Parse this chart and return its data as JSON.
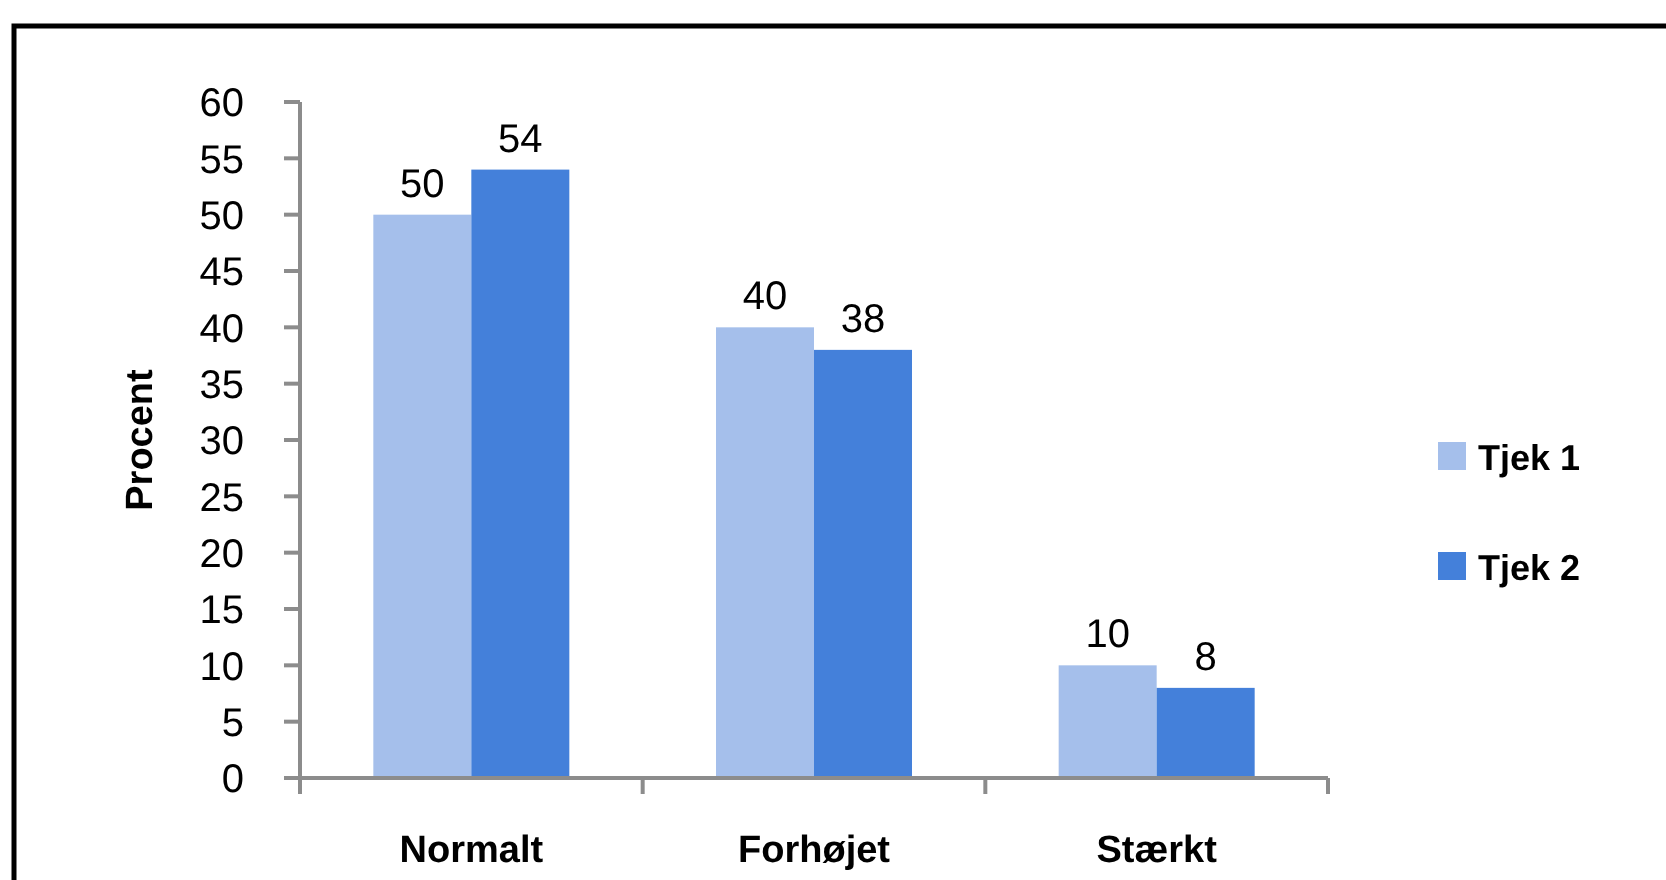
{
  "chart_data": {
    "type": "bar",
    "ylabel": "Procent",
    "categories": [
      "Normalt",
      "Forhøjet",
      "Stærkt"
    ],
    "series": [
      {
        "name": "Tjek 1",
        "color": "#a5bfeb",
        "values": [
          50,
          40,
          10
        ]
      },
      {
        "name": "Tjek 2",
        "color": "#4480da",
        "values": [
          54,
          38,
          8
        ]
      }
    ],
    "ylim": [
      0,
      60
    ],
    "yticks": [
      0,
      5,
      10,
      15,
      20,
      25,
      30,
      35,
      40,
      45,
      50,
      55,
      60
    ],
    "data_labels": true,
    "legend": "right"
  }
}
